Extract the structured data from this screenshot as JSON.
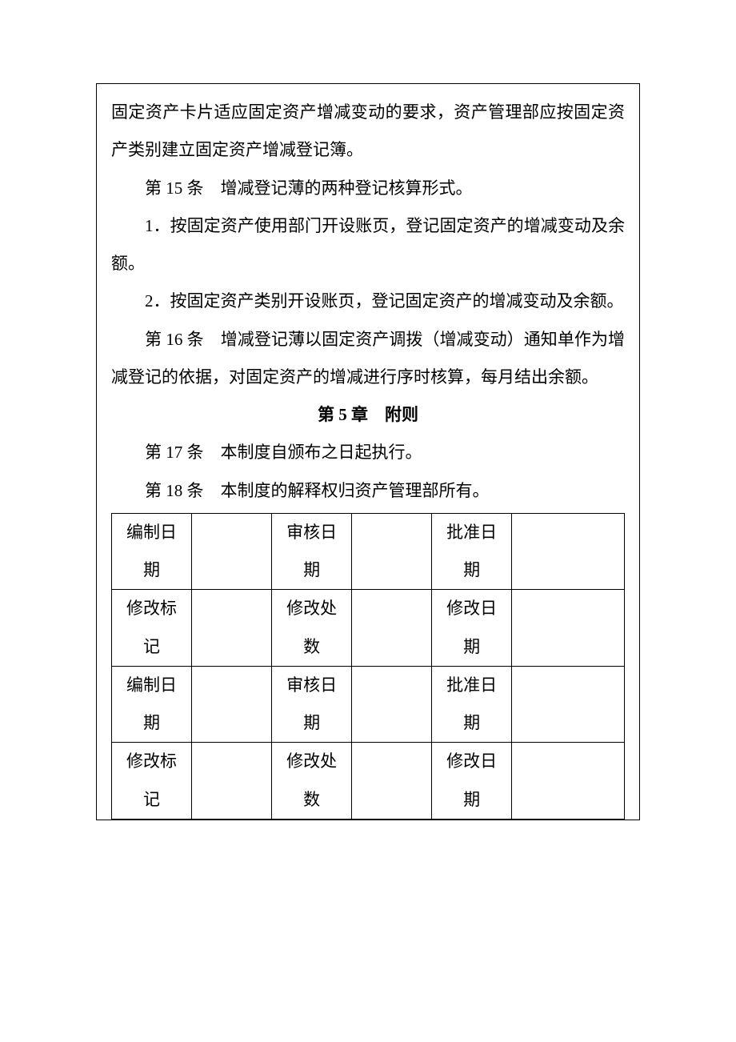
{
  "body": {
    "p1": "固定资产卡片适应固定资产增减变动的要求，资产管理部应按固定资产类别建立固定资产增减登记簿。",
    "p2": "第 15 条　增减登记薄的两种登记核算形式。",
    "p3": "1．按固定资产使用部门开设账页，登记固定资产的增减变动及余额。",
    "p4": "2．按固定资产类别开设账页，登记固定资产的增减变动及余额。",
    "p5": "第 16 条　增减登记薄以固定资产调拨（增减变动）通知单作为增减登记的依据，对固定资产的增减进行序时核算，每月结出余额。",
    "chapter": "第 5 章　附则",
    "p6": "第 17 条　本制度自颁布之日起执行。",
    "p7": "第 18 条　本制度的解释权归资产管理部所有。"
  },
  "table": {
    "rows": [
      {
        "c1": "编制日期",
        "v1": "",
        "c2": "审核日期",
        "v2": "",
        "c3": "批准日期",
        "v3": ""
      },
      {
        "c1": "修改标记",
        "v1": "",
        "c2": "修改处数",
        "v2": "",
        "c3": "修改日期",
        "v3": ""
      },
      {
        "c1": "编制日期",
        "v1": "",
        "c2": "审核日期",
        "v2": "",
        "c3": "批准日期",
        "v3": ""
      },
      {
        "c1": "修改标记",
        "v1": "",
        "c2": "修改处数",
        "v2": "",
        "c3": "修改日期",
        "v3": ""
      }
    ]
  },
  "style": {
    "font_size_pt": 16,
    "line_height": 2.25,
    "text_color": "#000000",
    "background_color": "#ffffff",
    "border_color": "#000000",
    "font_family": "SimSun"
  }
}
